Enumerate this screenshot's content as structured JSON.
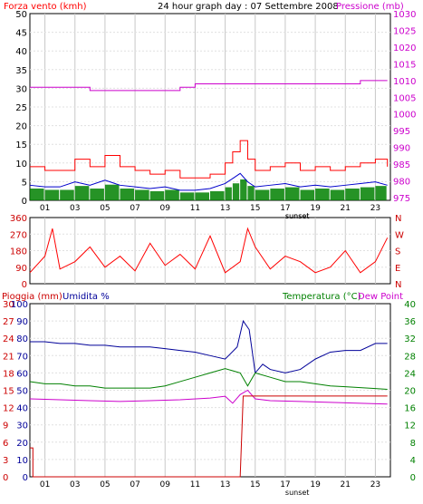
{
  "header": {
    "title": "24 hour graph day : 07 Settembre 2008",
    "left_title": "Forza vento (kmh)",
    "right_title": "Pressione (mb)"
  },
  "x_ticks": [
    "01",
    "03",
    "05",
    "07",
    "09",
    "11",
    "13",
    "15",
    "17",
    "19",
    "21",
    "23"
  ],
  "sunset_label": "sunset",
  "panel1": {
    "left_ticks": [
      "0",
      "5",
      "10",
      "15",
      "20",
      "25",
      "30",
      "35",
      "40",
      "45",
      "50"
    ],
    "right_ticks": [
      "975",
      "980",
      "985",
      "990",
      "995",
      "1000",
      "1005",
      "1010",
      "1015",
      "1020",
      "1025",
      "1030"
    ]
  },
  "panel2": {
    "left_ticks": [
      "0",
      "90",
      "180",
      "270",
      "360"
    ],
    "right_labels": [
      "N",
      "W",
      "S",
      "E",
      "N"
    ]
  },
  "panel3": {
    "label_rain": "Pioggia (mm)",
    "label_hum": "Umidita %",
    "label_temp": "Temperatura (°C)",
    "label_dew": "Dew Point",
    "rain_ticks": [
      "0",
      "3",
      "6",
      "9",
      "12",
      "15",
      "18",
      "21",
      "24",
      "27",
      "30"
    ],
    "hum_ticks": [
      "0",
      "10",
      "20",
      "30",
      "40",
      "50",
      "60",
      "70",
      "80",
      "90",
      "100"
    ],
    "temp_ticks": [
      "0",
      "4",
      "8",
      "12",
      "16",
      "20",
      "24",
      "28",
      "32",
      "36",
      "40"
    ]
  },
  "colors": {
    "grid": "#c8c8c8",
    "wind_max": "#ff0000",
    "wind_avg": "#0000cc",
    "wind_bar": "#008000",
    "pressure": "#cc00cc",
    "direction": "#ff0000",
    "rain": "#cc0000",
    "humidity": "#000099",
    "temperature": "#008000",
    "dewpoint": "#cc00cc"
  },
  "chart_data": [
    {
      "type": "line",
      "title": "24 hour graph day : 07 Settembre 2008",
      "x_unit": "hour",
      "series": [
        {
          "name": "Forza vento (kmh)",
          "axis": "left",
          "ylim": [
            0,
            50
          ],
          "x": [
            0,
            1,
            2,
            3,
            4,
            5,
            6,
            7,
            8,
            9,
            10,
            11,
            12,
            13,
            13.5,
            14,
            14.5,
            15,
            16,
            17,
            18,
            19,
            20,
            21,
            22,
            23,
            23.8
          ],
          "values": [
            9,
            8,
            8,
            11,
            9,
            12,
            9,
            8,
            7,
            8,
            6,
            6,
            7,
            10,
            13,
            16,
            11,
            8,
            9,
            10,
            8,
            9,
            8,
            9,
            10,
            11,
            9
          ]
        },
        {
          "name": "Pressione (mb)",
          "axis": "right",
          "ylim": [
            975,
            1030
          ],
          "x": [
            0,
            2,
            4,
            6,
            8,
            10,
            11,
            12,
            14,
            16,
            18,
            20,
            21,
            22,
            23,
            23.8
          ],
          "values": [
            1008,
            1008,
            1007,
            1007,
            1007,
            1008,
            1009,
            1009,
            1009,
            1009,
            1009,
            1009,
            1009,
            1010,
            1010,
            1010
          ]
        }
      ]
    },
    {
      "type": "line",
      "ylim": [
        0,
        360
      ],
      "x": [
        0,
        1,
        1.5,
        2,
        3,
        4,
        5,
        6,
        7,
        8,
        9,
        10,
        11,
        12,
        13,
        14,
        14.5,
        15,
        16,
        17,
        18,
        19,
        20,
        21,
        22,
        23,
        23.8
      ],
      "values": [
        60,
        150,
        300,
        80,
        120,
        200,
        90,
        150,
        70,
        220,
        100,
        160,
        80,
        260,
        60,
        120,
        300,
        200,
        80,
        150,
        120,
        60,
        90,
        180,
        60,
        120,
        250
      ]
    },
    {
      "type": "line",
      "x_unit": "hour",
      "series": [
        {
          "name": "Umidita %",
          "axis": "hum",
          "ylim": [
            0,
            100
          ],
          "x": [
            0,
            1,
            2,
            3,
            4,
            5,
            6,
            7,
            8,
            9,
            10,
            11,
            12,
            13,
            13.8,
            14.2,
            14.6,
            15,
            15.5,
            16,
            17,
            18,
            19,
            20,
            21,
            22,
            23,
            23.8
          ],
          "values": [
            78,
            78,
            77,
            77,
            76,
            76,
            75,
            75,
            75,
            74,
            73,
            72,
            70,
            68,
            75,
            90,
            85,
            60,
            65,
            62,
            60,
            62,
            68,
            72,
            73,
            73,
            77,
            77
          ]
        },
        {
          "name": "Temperatura (°C)",
          "axis": "temp",
          "ylim": [
            0,
            40
          ],
          "x": [
            0,
            1,
            2,
            3,
            4,
            5,
            6,
            7,
            8,
            9,
            10,
            11,
            12,
            13,
            14,
            14.5,
            15,
            16,
            17,
            18,
            19,
            20,
            21,
            22,
            23,
            23.8
          ],
          "values": [
            22,
            21.5,
            21.5,
            21,
            21,
            20.5,
            20.5,
            20.5,
            20.5,
            21,
            22,
            23,
            24,
            25,
            24,
            21,
            24,
            23,
            22,
            22,
            21.5,
            21,
            20.8,
            20.6,
            20.4,
            20.2
          ]
        },
        {
          "name": "Dew Point",
          "axis": "temp",
          "ylim": [
            0,
            40
          ],
          "x": [
            0,
            2,
            4,
            6,
            8,
            10,
            12,
            13,
            13.5,
            14,
            14.5,
            15,
            16,
            18,
            20,
            22,
            23.8
          ],
          "values": [
            18,
            17.8,
            17.6,
            17.4,
            17.6,
            17.8,
            18.2,
            18.6,
            17,
            19,
            20,
            18,
            17.6,
            17.4,
            17.2,
            17,
            16.8
          ]
        },
        {
          "name": "Pioggia (mm)",
          "axis": "rain",
          "ylim": [
            0,
            30
          ],
          "x": [
            0,
            0.2,
            0.2,
            13.8,
            14,
            14.2,
            23.8
          ],
          "values": [
            5,
            5,
            0,
            0,
            0,
            14,
            14
          ]
        }
      ]
    }
  ]
}
